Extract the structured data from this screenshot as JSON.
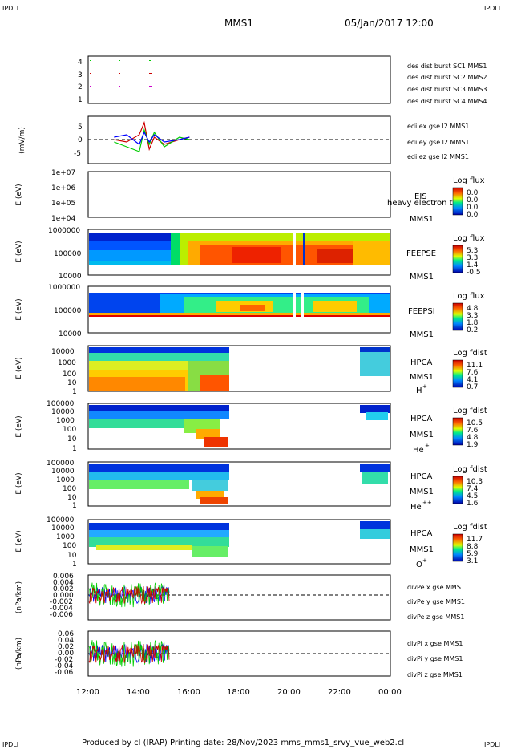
{
  "corner_labels": {
    "tl": "IPDLI",
    "tr": "IPDLI",
    "bl": "IPDLI",
    "br": "IPDLI"
  },
  "header": {
    "mission": "MMS1",
    "datetime": "05/Jan/2017 12:00"
  },
  "footer": {
    "text": "Produced by cl (IRAP)   Printing date: 28/Nov/2023   mms_mms1_srvy_vue_web2.cl"
  },
  "colors": {
    "c1": "#0000ff",
    "c2": "#cc00cc",
    "c3": "#cc0000",
    "c4": "#00cc00"
  },
  "panels": {
    "p1": {
      "ticks": [
        "4",
        "3",
        "2",
        "1"
      ],
      "legend": [
        "des dist burst SC1 MMS1",
        "des dist burst SC2 MMS2",
        "des dist burst SC3 MMS3",
        "des dist burst SC4 MMS4"
      ]
    },
    "p2": {
      "ylabel": "(mV/m)",
      "ticks": [
        "5",
        "0",
        "-5"
      ],
      "legend": [
        "edi ex gse l2 MMS1",
        "edi ey gse l2 MMS1",
        "edi ez gse l2 MMS1"
      ]
    },
    "p3": {
      "ylabel": "E (eV)",
      "ticks": [
        "1e+07",
        "1e+06",
        "1e+05",
        "1e+04"
      ],
      "labels": [
        "EIS",
        "MMS1"
      ],
      "overlay": "heavy electron to",
      "cb_title": "Log flux",
      "cb_ticks": [
        "0.0",
        "0.0",
        "0.0",
        "0.0"
      ]
    },
    "p4": {
      "ylabel": "E (eV)",
      "ticks": [
        "1000000",
        "100000",
        "10000"
      ],
      "labels": [
        "FEEPSE",
        "MMS1"
      ],
      "cb_title": "Log flux",
      "cb_ticks": [
        "5.3",
        "3.3",
        "1.4",
        "-0.5"
      ]
    },
    "p5": {
      "ylabel": "E (eV)",
      "ticks": [
        "1000000",
        "100000",
        "10000"
      ],
      "labels": [
        "FEEPSI",
        "MMS1"
      ],
      "cb_title": "Log flux",
      "cb_ticks": [
        "4.8",
        "3.3",
        "1.8",
        "0.2"
      ]
    },
    "p6": {
      "ylabel": "E (eV)",
      "ticks": [
        "10000",
        "1000",
        "100",
        "10",
        "1"
      ],
      "labels": [
        "HPCA",
        "MMS1"
      ],
      "species": "H",
      "sup": "+",
      "cb_title": "Log fdist",
      "cb_ticks": [
        "11.1",
        "7.6",
        "4.1",
        "0.7"
      ]
    },
    "p7": {
      "ylabel": "E (eV)",
      "ticks": [
        "100000",
        "10000",
        "1000",
        "100",
        "10",
        "1"
      ],
      "labels": [
        "HPCA",
        "MMS1"
      ],
      "species": "He",
      "sup": "+",
      "cb_title": "Log fdist",
      "cb_ticks": [
        "10.5",
        "7.6",
        "4.8",
        "1.9"
      ]
    },
    "p8": {
      "ylabel": "E (eV)",
      "ticks": [
        "100000",
        "10000",
        "1000",
        "100",
        "10",
        "1"
      ],
      "labels": [
        "HPCA",
        "MMS1"
      ],
      "species": "He",
      "sup": "++",
      "cb_title": "Log fdist",
      "cb_ticks": [
        "10.3",
        "7.4",
        "4.5",
        "1.6"
      ]
    },
    "p9": {
      "ylabel": "E (eV)",
      "ticks": [
        "100000",
        "10000",
        "1000",
        "100",
        "10",
        "1"
      ],
      "labels": [
        "HPCA",
        "MMS1"
      ],
      "species": "O",
      "sup": "+",
      "cb_title": "Log fdist",
      "cb_ticks": [
        "11.7",
        "8.8",
        "5.9",
        "3.1"
      ]
    },
    "p10": {
      "ylabel": "(nPa/km)",
      "ticks": [
        "0.006",
        "0.004",
        "0.002",
        "0.000",
        "-0.002",
        "-0.004",
        "-0.006"
      ],
      "legend": [
        "divPe x gse MMS1",
        "divPe y gse MMS1",
        "divPe z gse MMS1"
      ]
    },
    "p11": {
      "ylabel": "(nPa/km)",
      "ticks": [
        "0.06",
        "0.04",
        "0.02",
        "0.00",
        "-0.02",
        "-0.04",
        "-0.06"
      ],
      "legend": [
        "divPi x gse MMS1",
        "divPi y gse MMS1",
        "divPi z gse MMS1"
      ]
    }
  },
  "x_ticks": [
    "12:00",
    "14:00",
    "16:00",
    "18:00",
    "20:00",
    "22:00",
    "00:00"
  ],
  "chart_data": {
    "type": "heatmap",
    "title": "MMS1",
    "x_range": [
      "05/Jan/2017 12:00",
      "06/Jan/2017 00:00"
    ],
    "series": [
      {
        "name": "edi ex gse l2 MMS1",
        "x_hours": [
          13.0,
          13.5,
          14.0,
          14.2,
          14.4,
          14.6,
          15.0,
          15.6,
          16.0
        ],
        "values": [
          0,
          -1,
          2,
          7,
          -4,
          1,
          -2,
          0,
          1
        ]
      },
      {
        "name": "edi ey gse l2 MMS1",
        "x_hours": [
          13.0,
          13.5,
          14.0,
          14.2,
          14.4,
          14.6,
          15.0,
          15.6,
          16.0
        ],
        "values": [
          -1,
          -3,
          -5,
          4,
          -2,
          3,
          -3,
          1,
          0
        ]
      },
      {
        "name": "edi ez gse l2 MMS1",
        "x_hours": [
          13.0,
          13.5,
          14.0,
          14.2,
          14.4,
          14.6,
          15.0,
          15.6,
          16.0
        ],
        "values": [
          1,
          2,
          -2,
          3,
          -1,
          2,
          -1,
          0,
          1
        ]
      }
    ],
    "spectrograms": [
      {
        "name": "FEEPSE",
        "coverage_hours": [
          12.0,
          24.0
        ],
        "cb_range": [
          -0.5,
          5.3
        ]
      },
      {
        "name": "FEEPSI",
        "coverage_hours": [
          12.0,
          24.0
        ],
        "cb_range": [
          0.2,
          4.8
        ]
      },
      {
        "name": "HPCA H+",
        "coverage_hours": [
          [
            12.0,
            17.6
          ],
          [
            22.8,
            24.0
          ]
        ],
        "cb_range": [
          0.7,
          11.1
        ]
      },
      {
        "name": "HPCA He+",
        "coverage_hours": [
          [
            12.0,
            17.6
          ],
          [
            22.8,
            24.0
          ]
        ],
        "cb_range": [
          1.9,
          10.5
        ]
      },
      {
        "name": "HPCA He++",
        "coverage_hours": [
          [
            12.0,
            17.6
          ],
          [
            22.8,
            24.0
          ]
        ],
        "cb_range": [
          1.6,
          10.3
        ]
      },
      {
        "name": "HPCA O+",
        "coverage_hours": [
          [
            12.0,
            17.6
          ],
          [
            22.8,
            24.0
          ]
        ],
        "cb_range": [
          3.1,
          11.7
        ]
      }
    ],
    "divP_coverage_hours": [
      12.0,
      15.2
    ]
  }
}
